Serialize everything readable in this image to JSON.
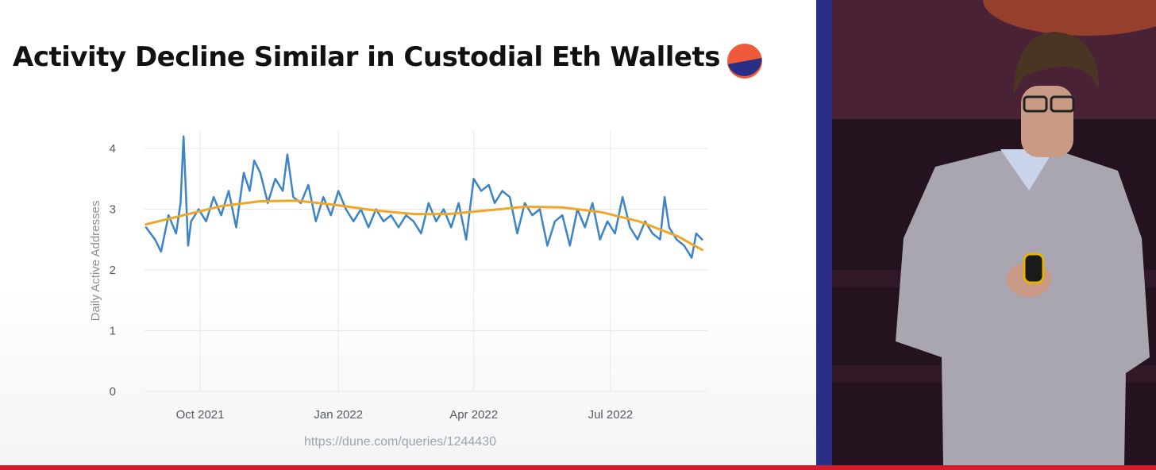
{
  "slide": {
    "title": "Activity Decline Similar in Custodial Eth Wallets",
    "source_url": "https://dune.com/queries/1244430",
    "logo_icon": "half-circle-logo-icon"
  },
  "colors": {
    "series": "#3d84c6",
    "trend": "#f0a626",
    "logo_top": "#ef5b3a",
    "logo_bottom": "#2a2f86",
    "stage_bar": "#2a2f86",
    "bottom_bar": "#d51c2a"
  },
  "chart_data": {
    "type": "line",
    "xlabel": "",
    "ylabel": "Daily Active Addresses",
    "x_range": [
      "2021-08-25",
      "2022-09-04"
    ],
    "ylim": [
      0,
      4.3
    ],
    "y_ticks": [
      0,
      1,
      2,
      3,
      4
    ],
    "x_ticks": [
      {
        "date": "2021-10-01",
        "label": "Oct 2021"
      },
      {
        "date": "2022-01-01",
        "label": "Jan 2022"
      },
      {
        "date": "2022-04-01",
        "label": "Apr 2022"
      },
      {
        "date": "2022-07-01",
        "label": "Jul 2022"
      }
    ],
    "grid": true,
    "series": [
      {
        "name": "",
        "x": [
          "2021-08-26",
          "2021-09-01",
          "2021-09-05",
          "2021-09-10",
          "2021-09-15",
          "2021-09-18",
          "2021-09-20",
          "2021-09-23",
          "2021-09-25",
          "2021-09-30",
          "2021-10-05",
          "2021-10-10",
          "2021-10-15",
          "2021-10-20",
          "2021-10-25",
          "2021-10-30",
          "2021-11-03",
          "2021-11-06",
          "2021-11-10",
          "2021-11-15",
          "2021-11-20",
          "2021-11-25",
          "2021-11-28",
          "2021-12-02",
          "2021-12-07",
          "2021-12-12",
          "2021-12-17",
          "2021-12-22",
          "2021-12-27",
          "2022-01-01",
          "2022-01-06",
          "2022-01-11",
          "2022-01-16",
          "2022-01-21",
          "2022-01-26",
          "2022-01-31",
          "2022-02-05",
          "2022-02-10",
          "2022-02-15",
          "2022-02-20",
          "2022-02-25",
          "2022-03-02",
          "2022-03-07",
          "2022-03-12",
          "2022-03-17",
          "2022-03-22",
          "2022-03-27",
          "2022-04-01",
          "2022-04-06",
          "2022-04-11",
          "2022-04-15",
          "2022-04-20",
          "2022-04-25",
          "2022-04-30",
          "2022-05-05",
          "2022-05-10",
          "2022-05-15",
          "2022-05-20",
          "2022-05-25",
          "2022-05-30",
          "2022-06-04",
          "2022-06-09",
          "2022-06-14",
          "2022-06-19",
          "2022-06-24",
          "2022-06-29",
          "2022-07-04",
          "2022-07-09",
          "2022-07-14",
          "2022-07-19",
          "2022-07-24",
          "2022-07-29",
          "2022-08-03",
          "2022-08-06",
          "2022-08-09",
          "2022-08-14",
          "2022-08-19",
          "2022-08-24",
          "2022-08-27",
          "2022-08-31"
        ],
        "values": [
          2.7,
          2.5,
          2.3,
          2.9,
          2.6,
          3.1,
          4.2,
          2.4,
          2.8,
          3.0,
          2.8,
          3.2,
          2.9,
          3.3,
          2.7,
          3.6,
          3.3,
          3.8,
          3.6,
          3.1,
          3.5,
          3.3,
          3.9,
          3.2,
          3.1,
          3.4,
          2.8,
          3.2,
          2.9,
          3.3,
          3.0,
          2.8,
          3.0,
          2.7,
          3.0,
          2.8,
          2.9,
          2.7,
          2.9,
          2.8,
          2.6,
          3.1,
          2.8,
          3.0,
          2.7,
          3.1,
          2.5,
          3.5,
          3.3,
          3.4,
          3.1,
          3.3,
          3.2,
          2.6,
          3.1,
          2.9,
          3.0,
          2.4,
          2.8,
          2.9,
          2.4,
          3.0,
          2.7,
          3.1,
          2.5,
          2.8,
          2.6,
          3.2,
          2.7,
          2.5,
          2.8,
          2.6,
          2.5,
          3.2,
          2.7,
          2.5,
          2.4,
          2.2,
          2.6,
          2.5
        ]
      },
      {
        "name": "",
        "x": [
          "2021-08-26",
          "2021-09-20",
          "2021-10-15",
          "2021-11-10",
          "2021-12-05",
          "2021-12-30",
          "2022-01-25",
          "2022-02-20",
          "2022-03-15",
          "2022-04-10",
          "2022-05-05",
          "2022-05-30",
          "2022-06-25",
          "2022-07-20",
          "2022-08-15",
          "2022-08-31"
        ],
        "values": [
          2.75,
          2.9,
          3.05,
          3.13,
          3.14,
          3.07,
          2.98,
          2.92,
          2.92,
          2.98,
          3.04,
          3.03,
          2.95,
          2.8,
          2.55,
          2.33
        ]
      }
    ]
  }
}
